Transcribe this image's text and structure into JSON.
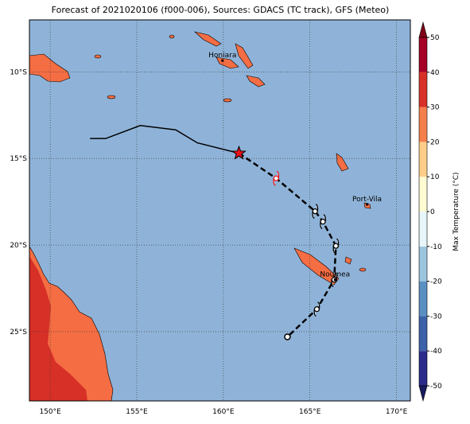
{
  "title": "Forecast of 2021020106 (f000-006), Sources: GDACS (TC track), GFS (Meteo)",
  "map": {
    "xlim": [
      148.8,
      170.8
    ],
    "ylim": [
      -29.0,
      -7.0
    ],
    "xticks": [
      {
        "value": 150,
        "label": "150°E"
      },
      {
        "value": 155,
        "label": "155°E"
      },
      {
        "value": 160,
        "label": "160°E"
      },
      {
        "value": 165,
        "label": "165°E"
      },
      {
        "value": 170,
        "label": "170°E"
      }
    ],
    "yticks": [
      {
        "value": -10,
        "label": "10°S"
      },
      {
        "value": -15,
        "label": "15°S"
      },
      {
        "value": -20,
        "label": "20°S"
      },
      {
        "value": -25,
        "label": "25°S"
      }
    ],
    "grid": true
  },
  "past_track": {
    "lon": [
      152.3,
      153.2,
      155.2,
      157.25,
      158.5,
      160.9
    ],
    "lat": [
      -13.85,
      -13.85,
      -13.1,
      -13.35,
      -14.1,
      -14.7
    ]
  },
  "forecast_track": {
    "lon": [
      160.9,
      163.05,
      165.3,
      165.75,
      166.5,
      166.4,
      165.4,
      163.7
    ],
    "lat": [
      -14.7,
      -16.15,
      -18.05,
      -18.65,
      -20.05,
      -22.0,
      -23.7,
      -25.3
    ]
  },
  "cities": [
    {
      "name": "Honiara",
      "lon": 159.95,
      "lat": -9.35
    },
    {
      "name": "Port-Vila",
      "lon": 168.3,
      "lat": -17.65
    },
    {
      "name": "Noumea",
      "lon": 166.45,
      "lat": -22.0
    }
  ],
  "colorbar": {
    "label": "Max Temperature (°C)",
    "lim": [
      -50,
      50
    ],
    "ticks": [
      -50,
      -40,
      -30,
      -20,
      -10,
      0,
      10,
      20,
      30,
      40,
      50
    ],
    "colors": [
      "#2b2b8c",
      "#3d62ab",
      "#5b8fc2",
      "#9cc6de",
      "#e8f6f9",
      "#fffbd2",
      "#fdce8a",
      "#f57f4b",
      "#d73027",
      "#a50026"
    ],
    "extend_colors": [
      "#1a1a60",
      "#7f0018"
    ]
  }
}
